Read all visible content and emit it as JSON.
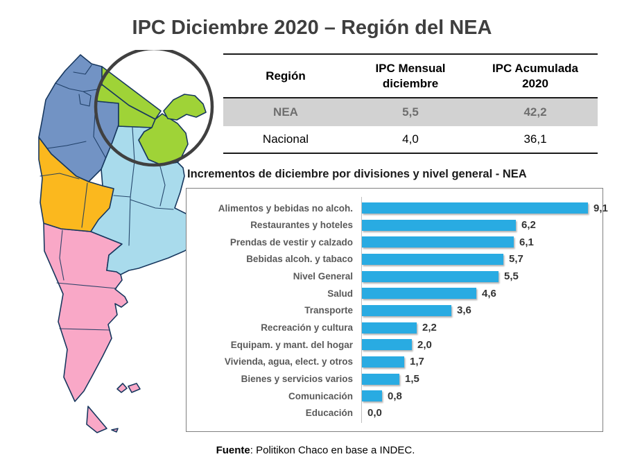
{
  "title": "IPC Diciembre 2020 – Región del NEA",
  "table": {
    "headers": [
      "Región",
      "IPC Mensual diciembre",
      "IPC Acumulada 2020"
    ],
    "rows": [
      {
        "region": "NEA",
        "ipc_mensual": "5,5",
        "ipc_acumulada": "42,2",
        "highlight": true
      },
      {
        "region": "Nacional",
        "ipc_mensual": "4,0",
        "ipc_acumulada": "36,1",
        "highlight": false
      }
    ],
    "highlight_row_bg": "#D2D2D2"
  },
  "chart_data": {
    "type": "bar",
    "orientation": "horizontal",
    "title": "Incrementos de diciembre por divisiones y nivel general - NEA",
    "categories": [
      "Alimentos y bebidas no alcoh.",
      "Restaurantes y hoteles",
      "Prendas de vestir y calzado",
      "Bebidas alcoh. y tabaco",
      "Nivel General",
      "Salud",
      "Transporte",
      "Recreación y cultura",
      "Equipam. y mant. del hogar",
      "Vivienda, agua, elect. y otros",
      "Bienes y servicios varios",
      "Comunicación",
      "Educación"
    ],
    "values": [
      9.1,
      6.2,
      6.1,
      5.7,
      5.5,
      4.6,
      3.6,
      2.2,
      2.0,
      1.7,
      1.5,
      0.8,
      0.0
    ],
    "value_labels": [
      "9,1",
      "6,2",
      "6,1",
      "5,7",
      "5,5",
      "4,6",
      "3,6",
      "2,2",
      "2,0",
      "1,7",
      "1,5",
      "0,8",
      "0,0"
    ],
    "xlim": [
      0,
      10
    ],
    "bar_color": "#29ABE2",
    "grid": false,
    "legend": false
  },
  "map": {
    "country": "Argentina",
    "region_colors": {
      "noa": "#7293C4",
      "nea": "#9FD337",
      "cuyo": "#FBB81E",
      "pampeana": "#A9DBEC",
      "patagonia": "#F9A8C7"
    },
    "border_color": "#17375E",
    "highlight_circle_color": "#404040",
    "highlighted_region": "NEA"
  },
  "footer": {
    "source_label": "Fuente",
    "source_text": ": Politikon Chaco en base a INDEC."
  }
}
